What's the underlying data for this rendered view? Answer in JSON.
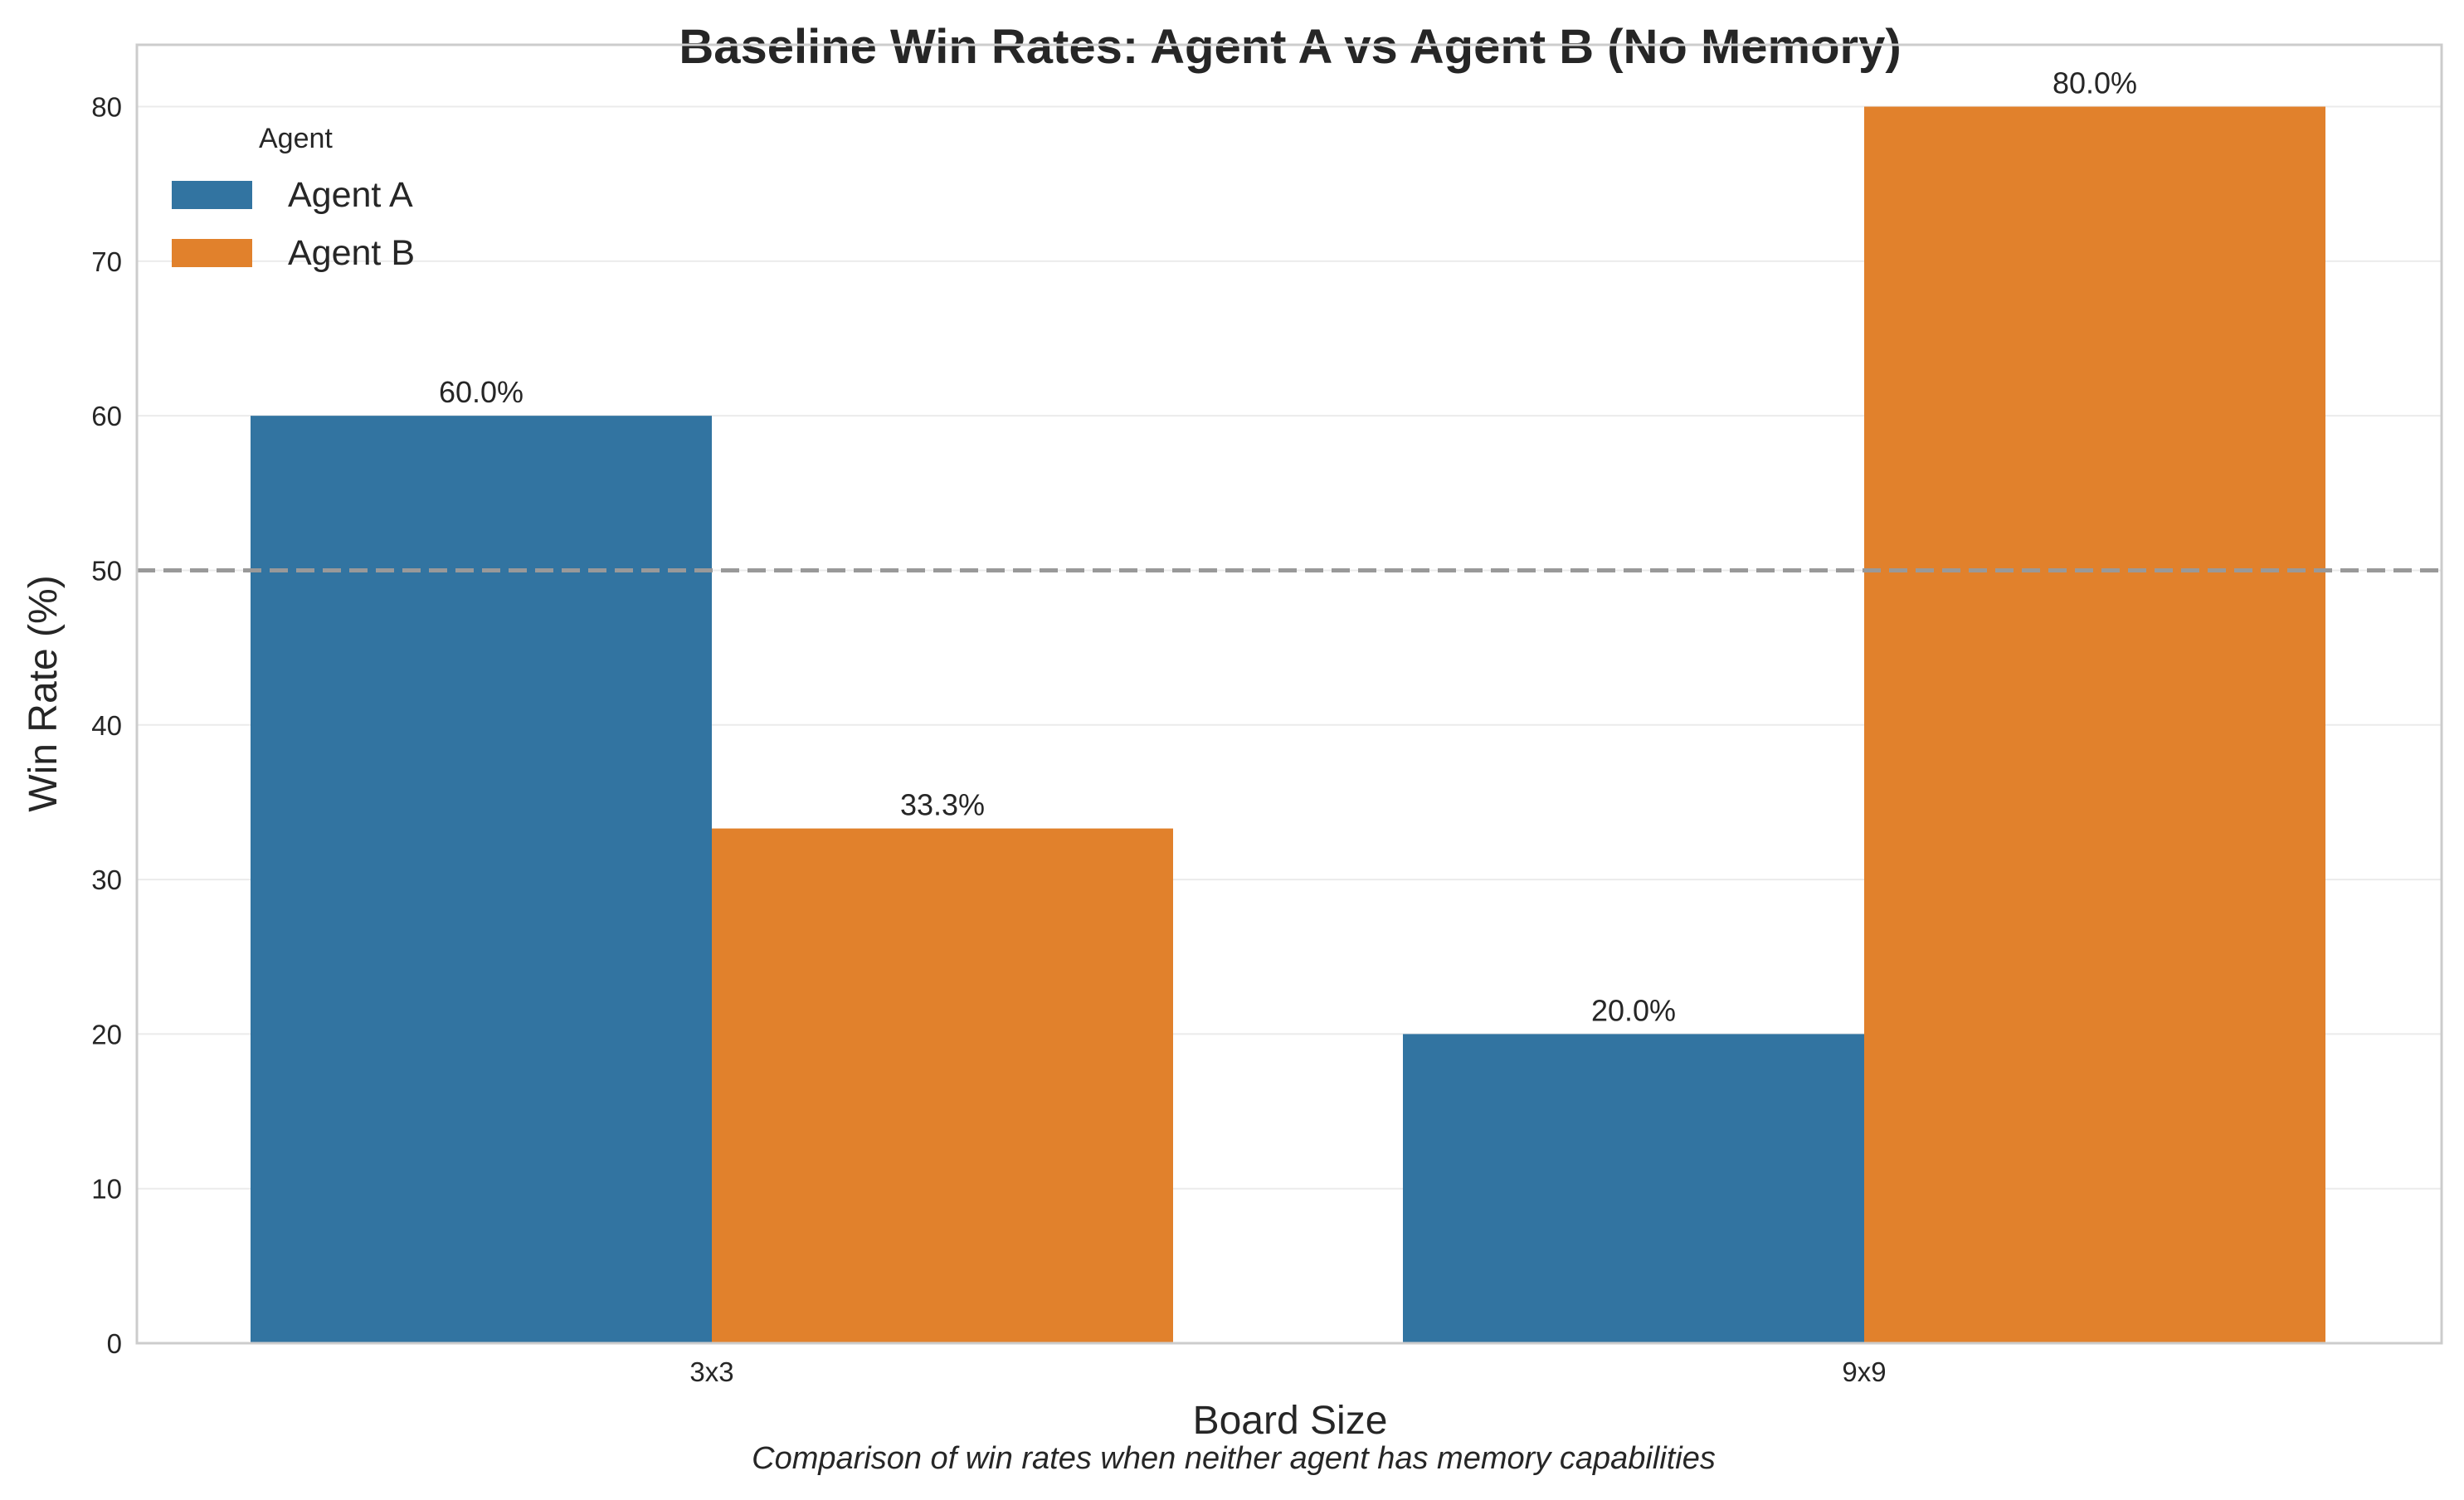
{
  "chart_data": {
    "type": "bar",
    "title": "Baseline Win Rates: Agent A vs Agent B (No Memory)",
    "caption": "Comparison of win rates when neither agent has memory capabilities",
    "xlabel": "Board Size",
    "ylabel": "Win Rate (%)",
    "categories": [
      "3x3",
      "9x9"
    ],
    "series": [
      {
        "name": "Agent A",
        "color": "#3274a1",
        "values": [
          60.0,
          20.0
        ],
        "labels": [
          "60.0%",
          "20.0%"
        ]
      },
      {
        "name": "Agent B",
        "color": "#e1812c",
        "values": [
          33.3,
          80.0
        ],
        "labels": [
          "33.3%",
          "80.0%"
        ]
      }
    ],
    "ylim": [
      0,
      84
    ],
    "yticks": [
      0,
      10,
      20,
      30,
      40,
      50,
      60,
      70,
      80
    ],
    "reference_line": {
      "value": 50,
      "style": "dashed",
      "color": "#999999"
    },
    "legend": {
      "title": "Agent",
      "placement": "top-left"
    },
    "grid": true
  }
}
